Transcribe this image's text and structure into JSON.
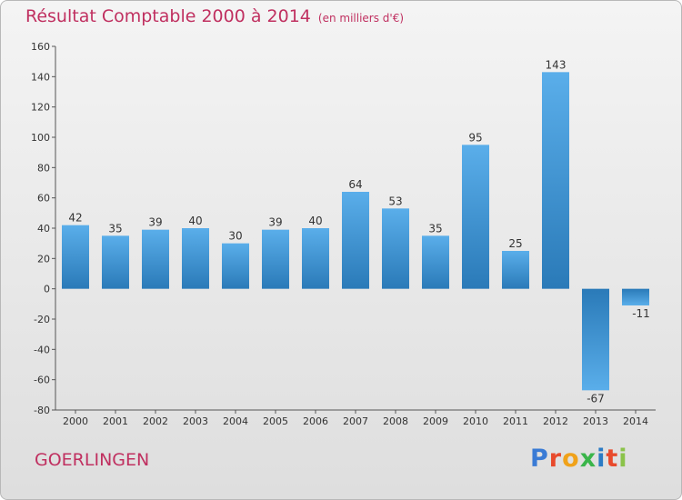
{
  "header": {
    "title": "Résultat Comptable 2000 à 2014",
    "subtitle": "(en milliers d'€)"
  },
  "footer": {
    "commune": "GOERLINGEN",
    "logo_text": "Proxiti"
  },
  "colors": {
    "title": "#c03060",
    "bar_light": "#5aaeea",
    "bar_dark": "#2a7ab8",
    "logo": [
      "#3a7bd5",
      "#e84a2c",
      "#f0a21a",
      "#3ab54a",
      "#2b7bc5",
      "#e84a2c",
      "#8bc34a"
    ]
  },
  "chart_data": {
    "type": "bar",
    "title": "Résultat Comptable 2000 à 2014",
    "subtitle": "(en milliers d'€)",
    "categories": [
      "2000",
      "2001",
      "2002",
      "2003",
      "2004",
      "2005",
      "2006",
      "2007",
      "2008",
      "2009",
      "2010",
      "2011",
      "2012",
      "2013",
      "2014"
    ],
    "values": [
      42,
      35,
      39,
      40,
      30,
      39,
      40,
      64,
      53,
      35,
      95,
      25,
      143,
      -67,
      -11
    ],
    "ylim": [
      -80,
      160
    ],
    "yticks": [
      -80,
      -60,
      -40,
      -20,
      0,
      20,
      40,
      60,
      80,
      100,
      120,
      140,
      160
    ],
    "grid": false,
    "data_labels": true
  }
}
